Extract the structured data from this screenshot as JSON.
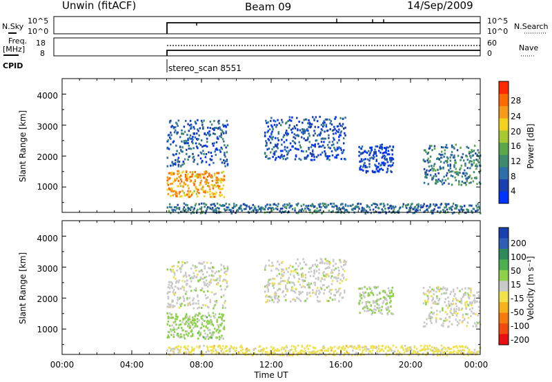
{
  "header": {
    "station": "Unwin (fitACF)",
    "beam": "Beam 09",
    "date": "14/Sep/2009"
  },
  "summary_panels": {
    "nsky": {
      "label": "N.Sky",
      "ticks": [
        "10^5",
        "10^0"
      ]
    },
    "nsearch": {
      "label": "N.Search",
      "ticks": [
        "10^5",
        "10^0"
      ]
    },
    "freq": {
      "label_line1": "Freq.",
      "label_line2": "[MHz]",
      "ticks": [
        "18",
        "8"
      ]
    },
    "nave": {
      "label": "Nave",
      "ticks": [
        "60",
        "0"
      ]
    },
    "cpid": {
      "label": "CPID",
      "value": "stereo_scan 8551"
    }
  },
  "colors": {
    "power_scale": [
      "#0033ff",
      "#1a3fae",
      "#2e6fa8",
      "#3d8a6e",
      "#5aa84a",
      "#a8c832",
      "#f2d21e",
      "#f59a1a",
      "#ff6a00",
      "#ff2a00"
    ],
    "velocity_scale": [
      "#1a3fae",
      "#2e5fb5",
      "#2e8a5a",
      "#4caf50",
      "#8ed14a",
      "#c9c9c9",
      "#f0e24a",
      "#f5b21a",
      "#f57a10",
      "#f04a10",
      "#e81010"
    ]
  },
  "chart_data": [
    {
      "type": "heatmap",
      "name": "power",
      "ylabel": "Slant Range [km]",
      "ylim": [
        180,
        4500
      ],
      "yticks": [
        "1000",
        "2000",
        "3000",
        "4000"
      ],
      "x_range_hours": [
        0,
        24
      ],
      "colorbar": {
        "label": "Power [dB]",
        "ticks": [
          "4",
          "8",
          "12",
          "16",
          "20",
          "24",
          "28"
        ],
        "range": [
          0,
          30
        ]
      },
      "echo_regions": [
        {
          "t_start": 6.0,
          "t_end": 9.3,
          "r_lo": 700,
          "r_hi": 1550,
          "level": 22
        },
        {
          "t_start": 6.0,
          "t_end": 9.5,
          "r_lo": 1700,
          "r_hi": 3200,
          "level": 6
        },
        {
          "t_start": 11.6,
          "t_end": 16.3,
          "r_lo": 1900,
          "r_hi": 3300,
          "level": 5
        },
        {
          "t_start": 17.0,
          "t_end": 19.0,
          "r_lo": 1500,
          "r_hi": 2400,
          "level": 4
        },
        {
          "t_start": 20.7,
          "t_end": 24.0,
          "r_lo": 1100,
          "r_hi": 2400,
          "level": 9
        },
        {
          "t_start": 6.0,
          "t_end": 24.0,
          "r_lo": 180,
          "r_hi": 500,
          "level": 8
        }
      ]
    },
    {
      "type": "heatmap",
      "name": "velocity",
      "ylabel": "Slant Range [km]",
      "ylim": [
        180,
        4500
      ],
      "yticks": [
        "1000",
        "2000",
        "3000",
        "4000"
      ],
      "x_range_hours": [
        0,
        24
      ],
      "xticks": [
        "00:00",
        "04:00",
        "08:00",
        "12:00",
        "16:00",
        "20:00",
        "00:00"
      ],
      "xlabel": "Time UT",
      "colorbar": {
        "label": "Velocity [m s⁻¹]",
        "ticks": [
          "200",
          "100",
          "50",
          "15",
          "-15",
          "-50",
          "-100",
          "-200"
        ],
        "range": [
          -250,
          250
        ]
      },
      "echo_regions": [
        {
          "t_start": 6.0,
          "t_end": 9.3,
          "r_lo": 700,
          "r_hi": 1550,
          "level": 40
        },
        {
          "t_start": 6.0,
          "t_end": 9.5,
          "r_lo": 1700,
          "r_hi": 3200,
          "level": 0
        },
        {
          "t_start": 11.6,
          "t_end": 16.3,
          "r_lo": 1900,
          "r_hi": 3300,
          "level": 0
        },
        {
          "t_start": 17.0,
          "t_end": 19.0,
          "r_lo": 1500,
          "r_hi": 2400,
          "level": 20
        },
        {
          "t_start": 20.7,
          "t_end": 24.0,
          "r_lo": 1100,
          "r_hi": 2400,
          "level": 0
        },
        {
          "t_start": 6.0,
          "t_end": 24.0,
          "r_lo": 180,
          "r_hi": 500,
          "level": -40
        }
      ]
    }
  ]
}
